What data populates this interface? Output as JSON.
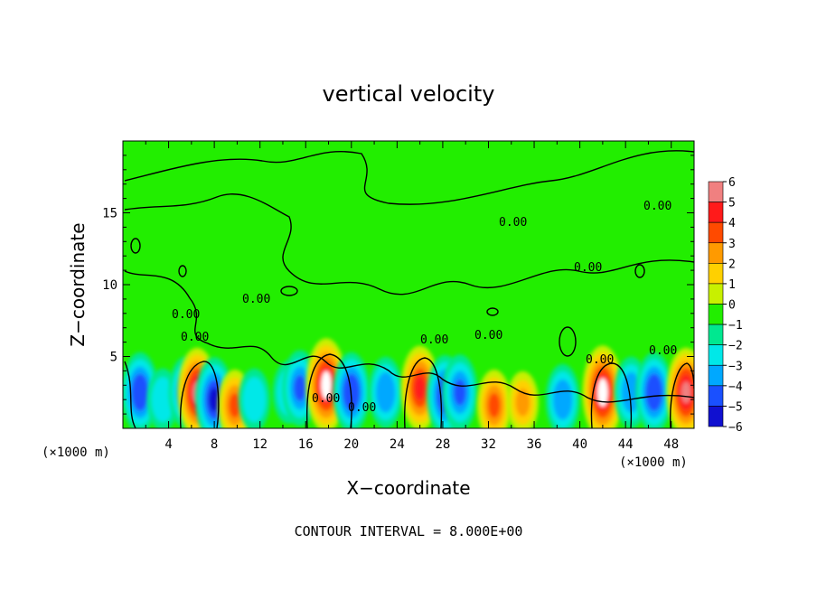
{
  "chart_data": {
    "type": "heatmap",
    "title": "vertical velocity",
    "xlabel": "X−coordinate",
    "ylabel": "Z−coordinate",
    "x_unit_left": "(×1000 m)",
    "x_unit_right": "(×1000 m)",
    "xlim": [
      0,
      50
    ],
    "ylim": [
      0,
      20
    ],
    "x_ticks": [
      {
        "value": 4,
        "label": "4"
      },
      {
        "value": 8,
        "label": "8"
      },
      {
        "value": 12,
        "label": "12"
      },
      {
        "value": 16,
        "label": "16"
      },
      {
        "value": 20,
        "label": "20"
      },
      {
        "value": 24,
        "label": "24"
      },
      {
        "value": 28,
        "label": "28"
      },
      {
        "value": 32,
        "label": "32"
      },
      {
        "value": 36,
        "label": "36"
      },
      {
        "value": 40,
        "label": "40"
      },
      {
        "value": 44,
        "label": "44"
      },
      {
        "value": 48,
        "label": "48"
      }
    ],
    "y_ticks": [
      {
        "value": 5,
        "label": "5"
      },
      {
        "value": 10,
        "label": "10"
      },
      {
        "value": 15,
        "label": "15"
      }
    ],
    "colorbar": {
      "levels": [
        {
          "value": 6,
          "label": "6",
          "color": "#f08080"
        },
        {
          "value": 5,
          "label": "5",
          "color": "#ff1a1a"
        },
        {
          "value": 4,
          "label": "4",
          "color": "#ff4a00"
        },
        {
          "value": 3,
          "label": "3",
          "color": "#ff9a00"
        },
        {
          "value": 2,
          "label": "2",
          "color": "#ffd000"
        },
        {
          "value": 1,
          "label": "1",
          "color": "#c8f000"
        },
        {
          "value": 0,
          "label": "0",
          "color": "#22ee00"
        },
        {
          "value": -1,
          "label": "−1",
          "color": "#00e890"
        },
        {
          "value": -2,
          "label": "−2",
          "color": "#00e8e8"
        },
        {
          "value": -3,
          "label": "−3",
          "color": "#00a8ff"
        },
        {
          "value": -4,
          "label": "−4",
          "color": "#1a50ff"
        },
        {
          "value": -5,
          "label": "−5",
          "color": "#1010d0"
        },
        {
          "value": -6,
          "label": "−6",
          "color": "#7a00b0"
        }
      ]
    },
    "cells": [
      {
        "x": 1.5,
        "z": 2.5,
        "w": -4.5
      },
      {
        "x": 3.5,
        "z": 2.0,
        "w": -2.5
      },
      {
        "x": 5.5,
        "z": 2.5,
        "w": -3.5
      },
      {
        "x": 6.5,
        "z": 2.5,
        "w": 5.5
      },
      {
        "x": 8.0,
        "z": 2.0,
        "w": -5.0
      },
      {
        "x": 9.8,
        "z": 1.6,
        "w": 3.5
      },
      {
        "x": 11.5,
        "z": 2.0,
        "w": -2.5
      },
      {
        "x": 14.5,
        "z": 2.5,
        "w": -2.5
      },
      {
        "x": 15.5,
        "z": 2.8,
        "w": -4.0
      },
      {
        "x": 17.8,
        "z": 3.0,
        "w": 6.0
      },
      {
        "x": 20.0,
        "z": 2.5,
        "w": -4.5
      },
      {
        "x": 23.0,
        "z": 2.5,
        "w": -3.5
      },
      {
        "x": 26.0,
        "z": 2.8,
        "w": 5.0
      },
      {
        "x": 28.2,
        "z": 2.3,
        "w": -4.5
      },
      {
        "x": 29.5,
        "z": 2.5,
        "w": -4.0
      },
      {
        "x": 32.5,
        "z": 1.6,
        "w": 3.5
      },
      {
        "x": 35.0,
        "z": 1.8,
        "w": 2.5
      },
      {
        "x": 38.5,
        "z": 2.0,
        "w": -3.5
      },
      {
        "x": 42.0,
        "z": 2.5,
        "w": 6.0
      },
      {
        "x": 44.5,
        "z": 2.5,
        "w": -3.5
      },
      {
        "x": 46.5,
        "z": 2.5,
        "w": -4.5
      },
      {
        "x": 49.3,
        "z": 2.5,
        "w": 5.5
      }
    ],
    "contour_labels": [
      "0.00",
      "0.00",
      "0.00",
      "0.00",
      "0.00",
      "0.00",
      "0.00",
      "0.00",
      "0.00",
      "0.00",
      "0.00",
      "0.00"
    ],
    "contour_interval_note": "CONTOUR INTERVAL = 8.000E+00",
    "colors": {
      "background": "#22ee00",
      "line": "#000000"
    }
  }
}
